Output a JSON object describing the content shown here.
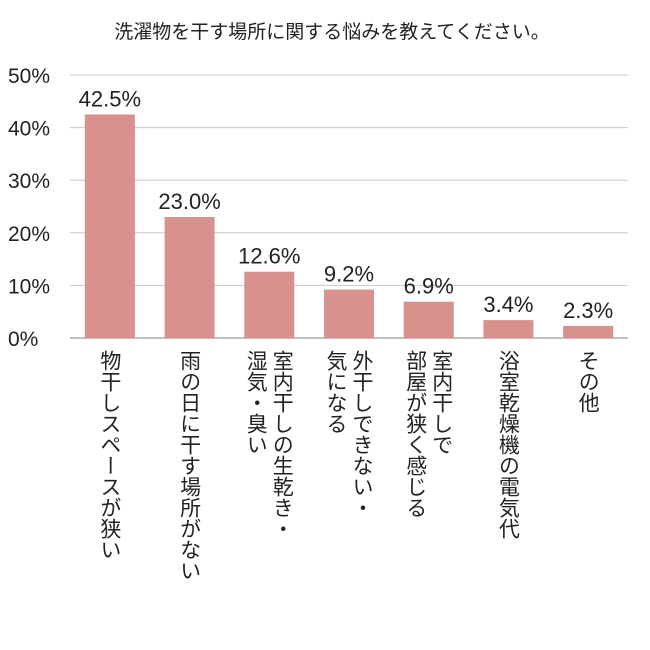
{
  "chart_data": {
    "type": "bar",
    "title": "洗濯物を干す場所に関する悩みを教えてください。",
    "categories": [
      "物干しスペースが狭い",
      "雨の日に干す場所がない",
      "室内干しの生乾き・湿気・臭い",
      "外干しできない・気になる",
      "室内干しで部屋が狭く感じる",
      "浴室乾燥機の電気代",
      "その他"
    ],
    "category_lines": [
      [
        "物干しスペースが狭い"
      ],
      [
        "雨の日に干す場所がない"
      ],
      [
        "室内干しの生乾き・",
        "湿気・臭い"
      ],
      [
        "外干しできない・",
        "気になる"
      ],
      [
        "室内干しで",
        "部屋が狭く感じる"
      ],
      [
        "浴室乾燥機の電気代"
      ],
      [
        "その他"
      ]
    ],
    "values": [
      42.5,
      23.0,
      12.6,
      9.2,
      6.9,
      3.4,
      2.3
    ],
    "value_labels": [
      "42.5%",
      "23.0%",
      "12.6%",
      "9.2%",
      "6.9%",
      "3.4%",
      "2.3%"
    ],
    "yticks": [
      "0%",
      "10%",
      "20%",
      "30%",
      "40%",
      "50%"
    ],
    "ylim": [
      0,
      50
    ],
    "xlabel": "",
    "ylabel": "",
    "grid": true,
    "bar_color": "#d9918e"
  }
}
